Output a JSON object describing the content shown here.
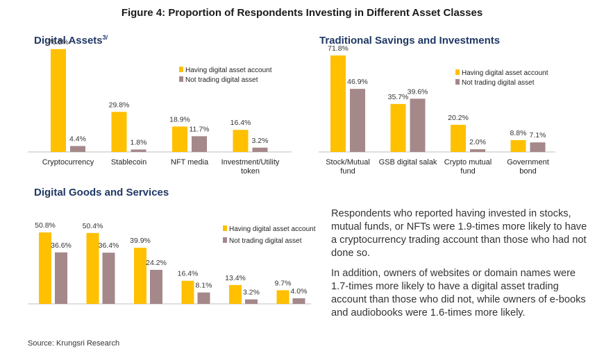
{
  "figure_title": "Figure 4: Proportion of Respondents Investing in Different Asset Classes",
  "panels": [
    {
      "title": "Digital Assets",
      "title_sup": "3/"
    },
    {
      "title": "Traditional Savings and Investments",
      "title_sup": ""
    },
    {
      "title": "Digital Goods and Services",
      "title_sup": ""
    }
  ],
  "note": {
    "p1": "Respondents who reported having invested in stocks, mutual funds, or NFTs were 1.9-times more likely to have a cryptocurrency trading account than those who had not done so.",
    "p2": "In addition, owners of websites or domain names were 1.7-times more likely to have a digital asset trading account than those who did not, while owners of e-books and audiobooks were 1.6-times more likely."
  },
  "source": "Source: Krungsri Research",
  "colors": {
    "series1": "#FFC000",
    "series2": "#A5888A",
    "axis": "#bfbfbf",
    "title": "#1f3864"
  },
  "chart_data": [
    {
      "type": "bar",
      "title": "Digital Assets",
      "categories": [
        "Cryptocurrency",
        "Stablecoin",
        "NFT media",
        "Investment/Utility token"
      ],
      "series": [
        {
          "name": "Having digital asset account",
          "values": [
            76.5,
            29.8,
            18.9,
            16.4
          ],
          "labels": [
            "76.5%",
            "29.8%",
            "18.9%",
            "16.4%"
          ]
        },
        {
          "name": "Not trading digital asset",
          "values": [
            4.4,
            1.8,
            11.7,
            3.2
          ],
          "labels": [
            "4.4%",
            "1.8%",
            "11.7%",
            "3.2%"
          ]
        }
      ],
      "ylim": [
        0,
        80
      ],
      "legend": "top-right"
    },
    {
      "type": "bar",
      "title": "Traditional Savings and Investments",
      "categories": [
        "Stock/Mutual fund",
        "GSB digital salak",
        "Crypto mutual fund",
        "Government bond"
      ],
      "series": [
        {
          "name": "Having digital asset account",
          "values": [
            71.8,
            35.7,
            20.2,
            8.8
          ],
          "labels": [
            "71.8%",
            "35.7%",
            "20.2%",
            "8.8%"
          ]
        },
        {
          "name": "Not trading digital asset",
          "values": [
            46.9,
            39.6,
            2.0,
            7.1
          ],
          "labels": [
            "46.9%",
            "39.6%",
            "2.0%",
            "7.1%"
          ]
        }
      ],
      "ylim": [
        0,
        80
      ],
      "legend": "top-right"
    },
    {
      "type": "bar",
      "title": "Digital Goods and Services",
      "categories": [
        "",
        "",
        "",
        "",
        "",
        ""
      ],
      "series": [
        {
          "name": "Having digital asset account",
          "values": [
            50.8,
            50.4,
            39.9,
            16.4,
            13.4,
            9.7
          ],
          "labels": [
            "50.8%",
            "50.4%",
            "39.9%",
            "16.4%",
            "13.4%",
            "9.7%"
          ]
        },
        {
          "name": "Not trading digital asset",
          "values": [
            36.6,
            36.4,
            24.2,
            8.1,
            3.2,
            4.0
          ],
          "labels": [
            "36.6%",
            "36.4%",
            "24.2%",
            "8.1%",
            "3.2%",
            "4.0%"
          ]
        }
      ],
      "ylim": [
        0,
        55
      ],
      "legend": "top-right"
    }
  ]
}
